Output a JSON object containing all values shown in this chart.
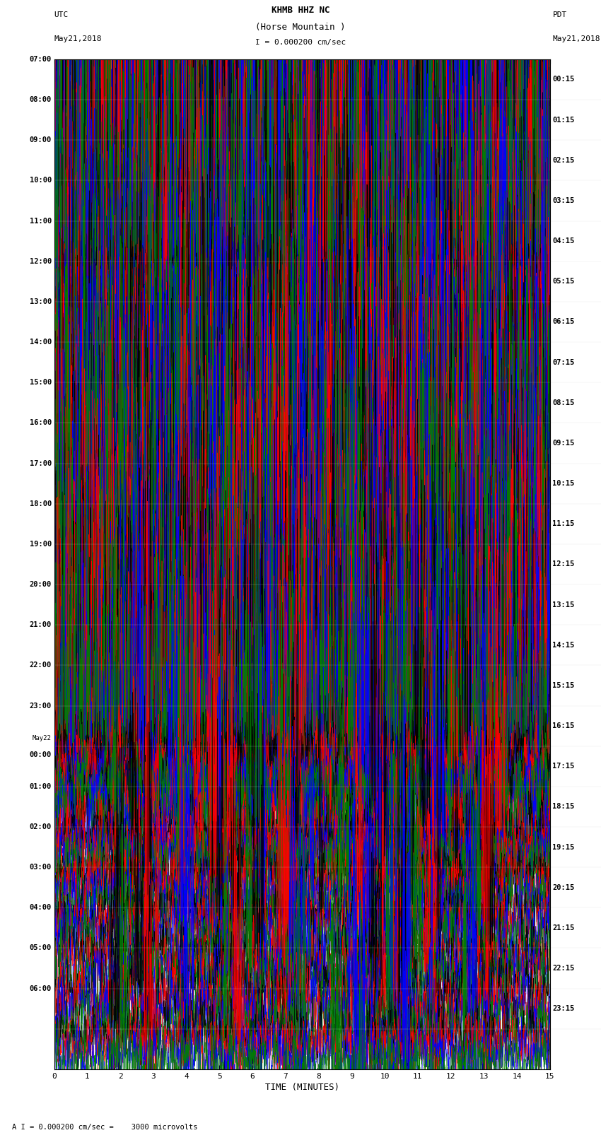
{
  "title_line1": "KHMB HHZ NC",
  "title_line2": "(Horse Mountain )",
  "title_line3": "I = 0.000200 cm/sec",
  "left_label_top": "UTC",
  "left_label_date": "May21,2018",
  "right_label_top": "PDT",
  "right_label_date": "May21,2018",
  "footer": "A I = 0.000200 cm/sec =    3000 microvolts",
  "xlabel": "TIME (MINUTES)",
  "xlim": [
    0,
    15
  ],
  "xticks": [
    0,
    1,
    2,
    3,
    4,
    5,
    6,
    7,
    8,
    9,
    10,
    11,
    12,
    13,
    14,
    15
  ],
  "colors": [
    "black",
    "red",
    "blue",
    "green"
  ],
  "left_times": [
    "07:00",
    "08:00",
    "09:00",
    "10:00",
    "11:00",
    "12:00",
    "13:00",
    "14:00",
    "15:00",
    "16:00",
    "17:00",
    "18:00",
    "19:00",
    "20:00",
    "21:00",
    "22:00",
    "23:00",
    "May22\n00:00",
    "01:00",
    "02:00",
    "03:00",
    "04:00",
    "05:00",
    "06:00",
    ""
  ],
  "right_times": [
    "00:15",
    "01:15",
    "02:15",
    "03:15",
    "04:15",
    "05:15",
    "06:15",
    "07:15",
    "08:15",
    "09:15",
    "10:15",
    "11:15",
    "12:15",
    "13:15",
    "14:15",
    "15:15",
    "16:15",
    "17:15",
    "18:15",
    "19:15",
    "20:15",
    "21:15",
    "22:15",
    "23:15"
  ],
  "n_rows": 25,
  "traces_per_row": 4,
  "fig_width": 8.5,
  "fig_height": 16.13,
  "bg_color": "white",
  "trace_amplitude": 0.38,
  "noise_seed": 42
}
